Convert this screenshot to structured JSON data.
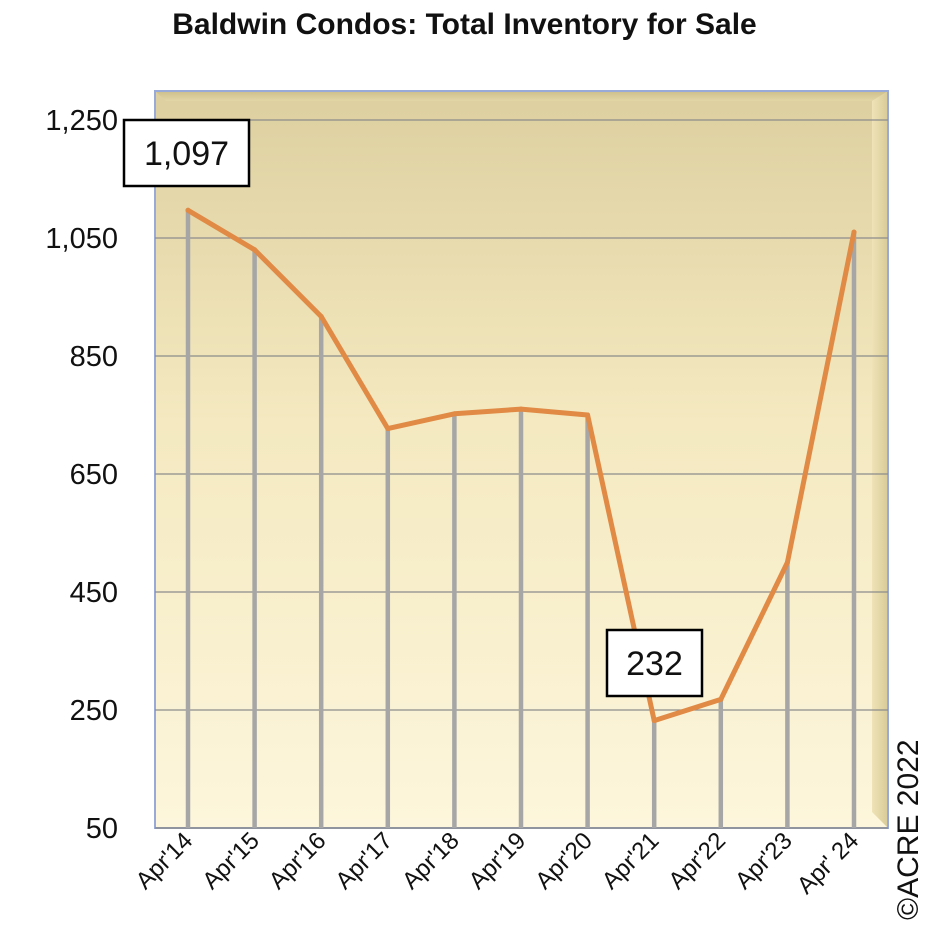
{
  "chart_data": {
    "type": "line",
    "title": "Baldwin Condos: Total Inventory for Sale",
    "categories": [
      "Apr'14",
      "Apr'15",
      "Apr'16",
      "Apr'17",
      "Apr'18",
      "Apr'19",
      "Apr'20",
      "Apr'21",
      "Apr'22",
      "Apr'23",
      "Apr' 24"
    ],
    "series": [
      {
        "name": "Total Inventory",
        "values": [
          1097,
          1030,
          917,
          727,
          752,
          760,
          750,
          232,
          268,
          500,
          1060
        ]
      }
    ],
    "ylim": [
      50,
      1250
    ],
    "yticks": [
      50,
      250,
      450,
      650,
      850,
      1050,
      1250
    ],
    "ytick_labels": [
      "50",
      "250",
      "450",
      "650",
      "850",
      "1,050",
      "1,250"
    ],
    "annotations": [
      {
        "label": "1,097",
        "category": "Apr'14"
      },
      {
        "label": "232",
        "category": "Apr'21"
      }
    ],
    "line_color": "#e08a45",
    "drop_line_color": "#a6a6a6",
    "grid": true,
    "xlabel": "",
    "ylabel": ""
  },
  "copyright": "©ACRE 2022"
}
